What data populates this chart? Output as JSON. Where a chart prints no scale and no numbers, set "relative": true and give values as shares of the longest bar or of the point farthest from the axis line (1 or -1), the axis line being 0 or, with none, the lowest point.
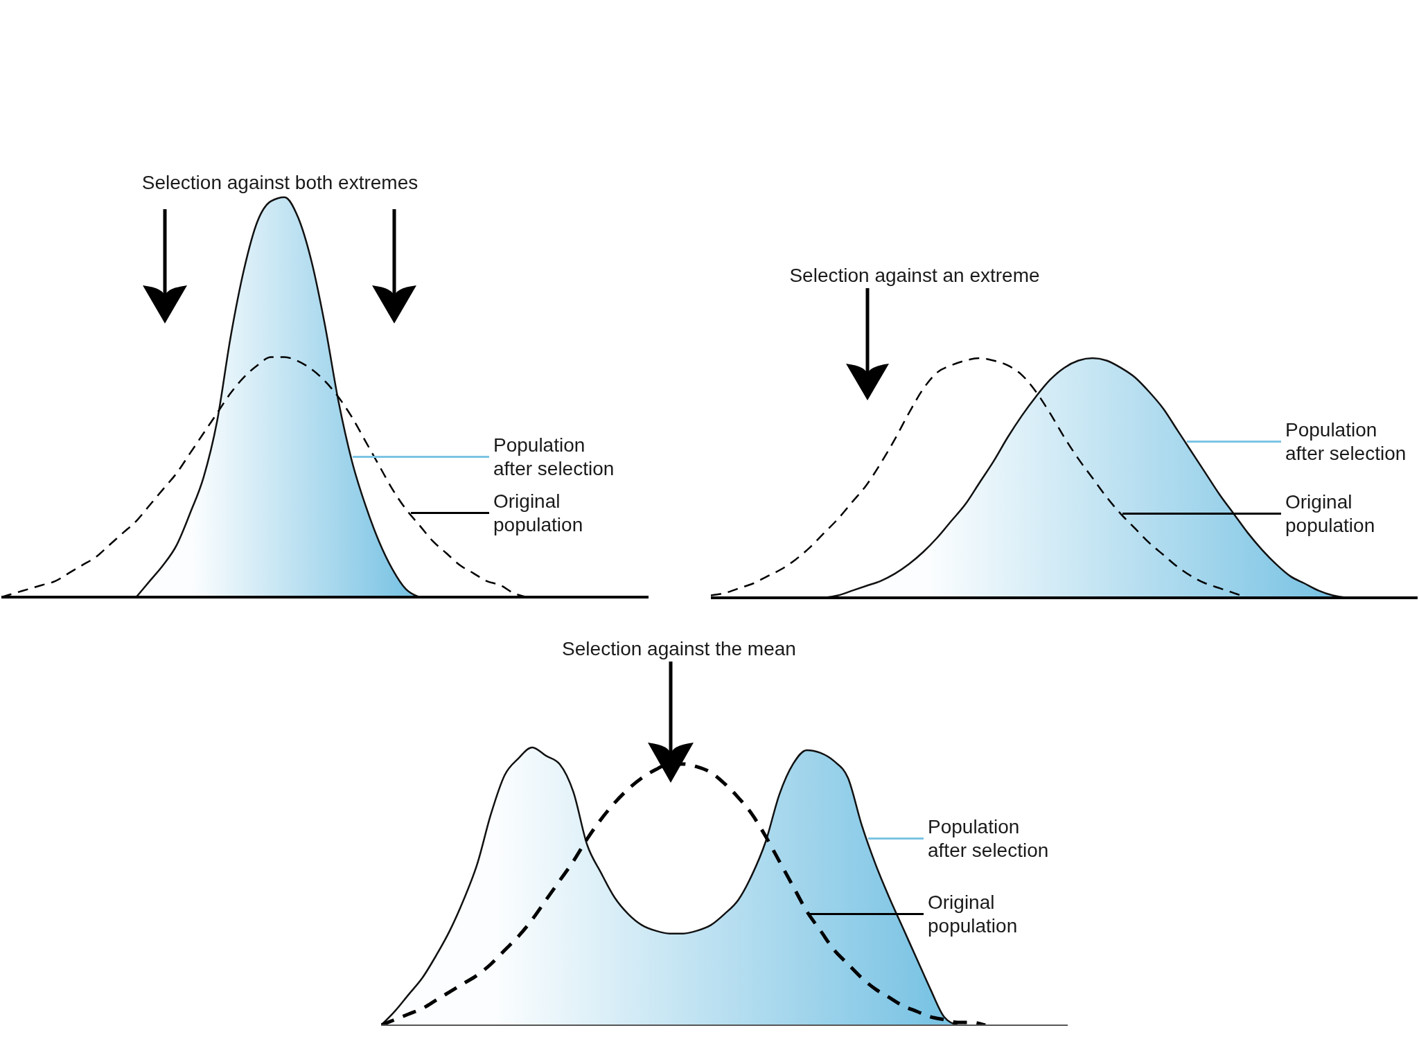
{
  "chart_data": [
    {
      "type": "area",
      "title": "Selection against both extremes",
      "relative": true,
      "legend": "right",
      "categories": [
        null,
        null,
        null,
        null,
        null,
        null,
        null,
        null,
        null,
        null,
        null,
        null,
        null,
        null,
        null,
        null,
        null,
        null,
        null,
        null,
        null,
        null,
        null,
        null,
        null,
        null,
        null,
        null,
        null,
        null,
        null,
        null,
        null,
        null,
        null,
        null,
        null,
        null,
        null,
        null,
        null,
        null,
        null,
        null,
        null,
        null,
        null,
        null,
        null
      ],
      "series": [
        {
          "name": "Population after selection",
          "type": "area",
          "color": "#7cc4e4",
          "values": [
            null,
            null,
            null,
            null,
            null,
            null,
            null,
            null,
            null,
            null,
            0,
            0.04,
            0.08,
            0.13,
            0.21,
            0.3,
            0.44,
            0.65,
            0.82,
            0.94,
            0.99,
            1,
            0.95,
            0.84,
            0.68,
            0.49,
            0.34,
            0.23,
            0.14,
            0.07,
            0.02,
            0,
            null,
            null,
            null,
            null,
            null,
            null,
            null,
            null,
            null,
            null,
            null,
            null,
            null,
            null,
            null,
            null,
            null
          ]
        },
        {
          "name": "Original population",
          "type": "line",
          "color": "#000000",
          "line_style": "dashed",
          "values": [
            0,
            0.01,
            0.02,
            0.03,
            0.04,
            0.06,
            0.08,
            0.1,
            0.13,
            0.16,
            0.19,
            0.23,
            0.27,
            0.31,
            0.36,
            0.41,
            0.46,
            0.51,
            0.55,
            0.58,
            0.6,
            0.6,
            0.59,
            0.57,
            0.54,
            0.5,
            0.45,
            0.39,
            0.33,
            0.27,
            0.22,
            0.18,
            0.14,
            0.11,
            0.08,
            0.06,
            0.04,
            0.03,
            0.01,
            0,
            null,
            null,
            null,
            null,
            null,
            null,
            null,
            null,
            null
          ]
        }
      ]
    },
    {
      "type": "area",
      "title": "Selection against an extreme",
      "relative": true,
      "legend": "right",
      "categories": [
        null,
        null,
        null,
        null,
        null,
        null,
        null,
        null,
        null,
        null,
        null,
        null,
        null,
        null,
        null,
        null,
        null,
        null,
        null,
        null,
        null,
        null,
        null,
        null,
        null,
        null,
        null,
        null,
        null,
        null,
        null,
        null,
        null,
        null,
        null,
        null,
        null,
        null,
        null,
        null,
        null,
        null,
        null,
        null,
        null,
        null,
        null,
        null,
        null,
        null,
        null
      ],
      "series": [
        {
          "name": "Population after selection",
          "type": "area",
          "color": "#7cc4e4",
          "values": [
            null,
            null,
            null,
            null,
            null,
            null,
            null,
            null,
            0,
            0.01,
            0.03,
            0.05,
            0.07,
            0.1,
            0.14,
            0.19,
            0.25,
            0.32,
            0.39,
            0.48,
            0.57,
            0.67,
            0.76,
            0.84,
            0.91,
            0.96,
            0.99,
            1,
            0.99,
            0.96,
            0.92,
            0.86,
            0.79,
            0.7,
            0.61,
            0.52,
            0.43,
            0.35,
            0.27,
            0.2,
            0.14,
            0.09,
            0.06,
            0.03,
            0.01,
            0,
            null,
            null,
            null,
            null,
            null
          ]
        },
        {
          "name": "Original population",
          "type": "line",
          "color": "#000000",
          "line_style": "dashed",
          "values": [
            0.01,
            0.02,
            0.04,
            0.06,
            0.09,
            0.12,
            0.16,
            0.21,
            0.27,
            0.33,
            0.4,
            0.47,
            0.56,
            0.66,
            0.77,
            0.87,
            0.94,
            0.97,
            0.99,
            1,
            0.99,
            0.97,
            0.93,
            0.86,
            0.77,
            0.67,
            0.58,
            0.5,
            0.42,
            0.35,
            0.29,
            0.23,
            0.18,
            0.13,
            0.09,
            0.06,
            0.04,
            0.02,
            0,
            null,
            null,
            null,
            null,
            null,
            null,
            null,
            null,
            null,
            null,
            null,
            null
          ]
        }
      ]
    },
    {
      "type": "area",
      "title": "Selection against the mean",
      "relative": true,
      "legend": "right",
      "categories": [
        null,
        null,
        null,
        null,
        null,
        null,
        null,
        null,
        null,
        null,
        null,
        null,
        null,
        null,
        null,
        null,
        null,
        null,
        null,
        null,
        null,
        null,
        null,
        null,
        null,
        null,
        null,
        null,
        null,
        null,
        null,
        null,
        null,
        null,
        null,
        null,
        null,
        null,
        null,
        null,
        null,
        null,
        null,
        null,
        null,
        null,
        null,
        null,
        null,
        null,
        null
      ],
      "series": [
        {
          "name": "Population after selection",
          "type": "area",
          "color": "#7cc4e4",
          "values": [
            0,
            0.05,
            0.11,
            0.17,
            0.25,
            0.34,
            0.45,
            0.58,
            0.76,
            0.9,
            0.96,
            1,
            0.97,
            0.94,
            0.84,
            0.65,
            0.55,
            0.46,
            0.4,
            0.36,
            0.34,
            0.33,
            0.33,
            0.34,
            0.36,
            0.4,
            0.45,
            0.54,
            0.66,
            0.83,
            0.94,
            0.99,
            0.98,
            0.95,
            0.89,
            0.72,
            0.58,
            0.46,
            0.35,
            0.24,
            0.13,
            0.03,
            0,
            null,
            null,
            null,
            null,
            null,
            null,
            null,
            null
          ]
        },
        {
          "name": "Original population",
          "type": "line",
          "color": "#000000",
          "line_style": "dashed",
          "values": [
            0,
            0.02,
            0.04,
            0.06,
            0.09,
            0.12,
            0.15,
            0.18,
            0.22,
            0.27,
            0.32,
            0.38,
            0.45,
            0.52,
            0.59,
            0.67,
            0.74,
            0.8,
            0.85,
            0.89,
            0.92,
            0.94,
            0.94,
            0.93,
            0.91,
            0.87,
            0.82,
            0.76,
            0.68,
            0.59,
            0.5,
            0.41,
            0.34,
            0.27,
            0.22,
            0.17,
            0.13,
            0.1,
            0.07,
            0.05,
            0.03,
            0.02,
            0.01,
            0.01,
            0,
            null,
            null,
            null,
            null,
            null,
            null
          ]
        }
      ]
    }
  ]
}
